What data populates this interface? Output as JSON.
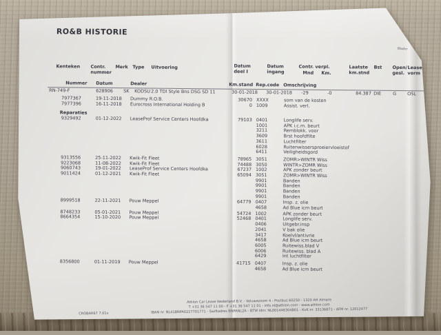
{
  "header": {
    "title": "RO&B HISTORIE",
    "bladnr": "Bladnr"
  },
  "columns": {
    "kenteken": "Kenteken",
    "contr_nummer": "Contr.\nnummer",
    "merk": "Merk",
    "type": "Type",
    "uitvoering": "Uitvoering",
    "datum_deel1": "Datum\ndeel I",
    "datum_ingang": "Datum\ningang",
    "contr_verpl": "Contr. verpl.",
    "mnd": "Mnd",
    "km": "Km.",
    "laatste_kmstnd": "Laatste\nkm.stnd",
    "bst": "Bst",
    "open_gesl": "Open/\ngesl.",
    "leasevorm": "Lease-\nvorm",
    "nummer": "Nummer",
    "datum": "Datum",
    "dealer": "Dealer",
    "km_stand": "Km.stand",
    "rep_code": "Rep.code",
    "omschrijving": "Omschrijving"
  },
  "vehicle": {
    "kenteken": "RN-749-F",
    "contr_nummer": "628906",
    "merk": "SK",
    "type": "KODSU",
    "uitvoering": "2.0 TDI Style Bns DSG SD 11",
    "datum_deel1": "30-01-2018",
    "datum_ingang": "30-01-2018",
    "contr_verpl_mnd": "-29",
    "contr_verpl_km": "-0",
    "laatste_kmstnd": "84.387",
    "bst": "DIE",
    "open_gesl": "G",
    "leasevorm": "OSL"
  },
  "rows": [
    {
      "num": "7977367",
      "datum": "19-11-2018",
      "dealer": "Dummy R.O.B.",
      "km": "30670",
      "code": "XXXX",
      "oms": "som van de kosten"
    },
    {
      "num": "7977396",
      "datum": "16-11-2018",
      "dealer": "Eurocross International Holding B",
      "km": "0",
      "code": "1009",
      "oms": "Assist. verl."
    },
    {
      "label": "Reparaties",
      "gap": 6
    },
    {
      "num": "9329492",
      "datum": "01-12-2022",
      "dealer": "LeaseProf Service Centers Hoofdka",
      "km": "79103",
      "code": "0401",
      "oms": "Longlife serv."
    },
    {
      "code": "1001",
      "oms": "APK i.c.m. beurt"
    },
    {
      "code": "3211",
      "oms": "Remblokk. voor"
    },
    {
      "code": "3609",
      "oms": "Brst hoofdfilte"
    },
    {
      "code": "3611",
      "oms": "Luchtfilter"
    },
    {
      "code": "6028",
      "oms": "Ruitenwissersproeiervloeistof"
    },
    {
      "code": "6411",
      "oms": "Veiligheidsgord"
    },
    {
      "num": "9313556",
      "datum": "25-11-2022",
      "dealer": "Kwik-Fit Fleet",
      "km": "78965",
      "code": "3051",
      "oms": "ZOMR>WINTR Wiss",
      "gap": 3
    },
    {
      "num": "9223068",
      "datum": "11-08-2022",
      "dealer": "Kwik-Fit Fleet",
      "km": "74488",
      "code": "3050",
      "oms": "WINTR>ZOMR Wiss"
    },
    {
      "num": "9060743",
      "datum": "19-01-2022",
      "dealer": "LeaseProf Service Centers Hoofdka",
      "km": "67237",
      "code": "1002",
      "oms": "APK zonder beurt"
    },
    {
      "num": "9011424",
      "datum": "01-12-2021",
      "dealer": "Kwik-Fit Fleet",
      "km": "65094",
      "code": "3051",
      "oms": "ZOMR>WINTR Wiss"
    },
    {
      "code": "9901",
      "oms": "Banden"
    },
    {
      "code": "9901",
      "oms": "Banden"
    },
    {
      "code": "9901",
      "oms": "Banden"
    },
    {
      "code": "9901",
      "oms": "Banden"
    },
    {
      "num": "8999518",
      "datum": "22-11-2021",
      "dealer": "Pouw Meppel",
      "km": "64779",
      "code": "0407",
      "oms": "Insp. z. olie",
      "gap": 1
    },
    {
      "code": "4658",
      "oms": "Ad Blue icm beurt"
    },
    {
      "num": "8748233",
      "datum": "05-01-2021",
      "dealer": "Pouw Meppel",
      "km": "54724",
      "code": "1002",
      "oms": "APK zonder beurt",
      "gap": 1
    },
    {
      "num": "8664354",
      "datum": "15-10-2020",
      "dealer": "Pouw Meppel",
      "km": "52468",
      "code": "0401",
      "oms": "Longlife serv."
    },
    {
      "code": "0406",
      "oms": "Uitgebr.insp"
    },
    {
      "code": "2041",
      "oms": "V bak olie"
    },
    {
      "code": "3417",
      "oms": "Koelvl/antivrie"
    },
    {
      "code": "4658",
      "oms": "Ad Blue icm beurt"
    },
    {
      "code": "6005",
      "oms": "Ruitewiss.blad V"
    },
    {
      "code": "6006",
      "oms": "Ruitewiss. blad A"
    },
    {
      "code": "6429",
      "oms": "Int luchtfilter"
    },
    {
      "num": "8356800",
      "datum": "01-11-2019",
      "dealer": "Pouw Meppel",
      "km": "41715",
      "code": "0407",
      "oms": "Insp. z. olie",
      "gap": 3
    },
    {
      "code": "4658",
      "oms": "Ad Blue icm beurt"
    }
  ],
  "footer": {
    "doc_code": "CROBAR67 7.01v",
    "line1": "Athlon Car Lease Nederland B.V. - Veluwezoom 4 - Postbus 60250 - 1320 AH  Almere",
    "line2": "T +31 36 547 11 00 - F +31 36 547 11 01 - info.nl@athlon.com - www.athlon.com",
    "line3": "IBAN nr. NL41BNPA0227701771 - Swiftadres BNPANL2A - BTW idnr. NL001448304B01 - KvK nr. 33136871 - AFM nr. 12012477"
  },
  "colors": {
    "paper": "#e8e7e4",
    "ink": "#41414b",
    "desk": "#a89f90"
  }
}
